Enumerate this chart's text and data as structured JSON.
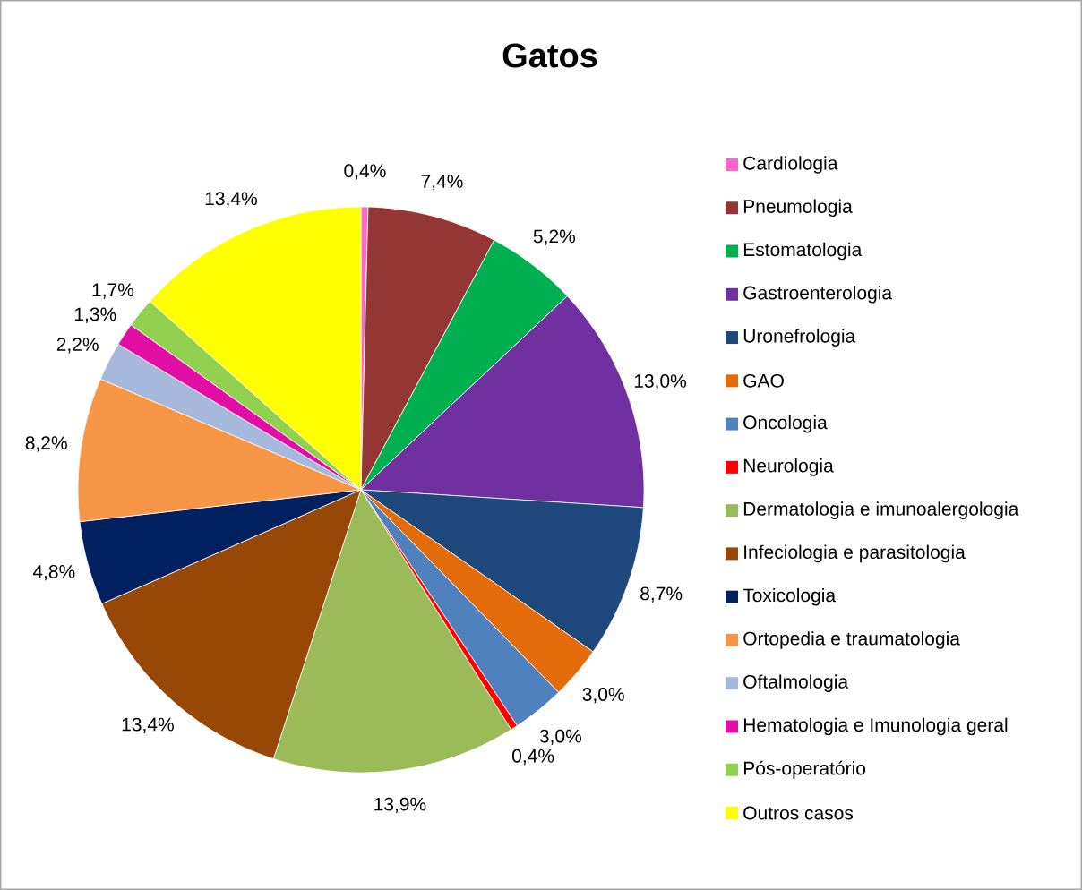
{
  "chart_data": {
    "type": "pie",
    "title": "Gatos",
    "categories": [
      "Cardiologia",
      "Pneumologia",
      "Estomatologia",
      "Gastroenterologia",
      "Uronefrologia",
      "GAO",
      "Oncologia",
      "Neurologia",
      "Dermatologia e imunoalergologia",
      "Infeciologia e parasitologia",
      "Toxicologia",
      "Ortopedia e traumatologia",
      "Oftalmologia",
      "Hematologia e Imunologia geral",
      "Pós-operatório",
      "Outros casos"
    ],
    "values": [
      0.4,
      7.4,
      5.2,
      13.0,
      8.7,
      3.0,
      3.0,
      0.4,
      13.9,
      13.4,
      4.8,
      8.2,
      2.2,
      1.3,
      1.7,
      13.4
    ],
    "value_labels": [
      "0,4%",
      "7,4%",
      "5,2%",
      "13,0%",
      "8,7%",
      "3,0%",
      "3,0%",
      "0,4%",
      "13,9%",
      "13,4%",
      "4,8%",
      "8,2%",
      "2,2%",
      "1,3%",
      "1,7%",
      "13,4%"
    ],
    "colors": [
      "#ff66cc",
      "#943634",
      "#00b050",
      "#7030a0",
      "#1f497d",
      "#e36c09",
      "#4f81bd",
      "#ff0000",
      "#9bbb59",
      "#974806",
      "#002060",
      "#f79646",
      "#a6b9dc",
      "#e20ea5",
      "#92d050",
      "#ffff00"
    ],
    "legend": "right"
  }
}
